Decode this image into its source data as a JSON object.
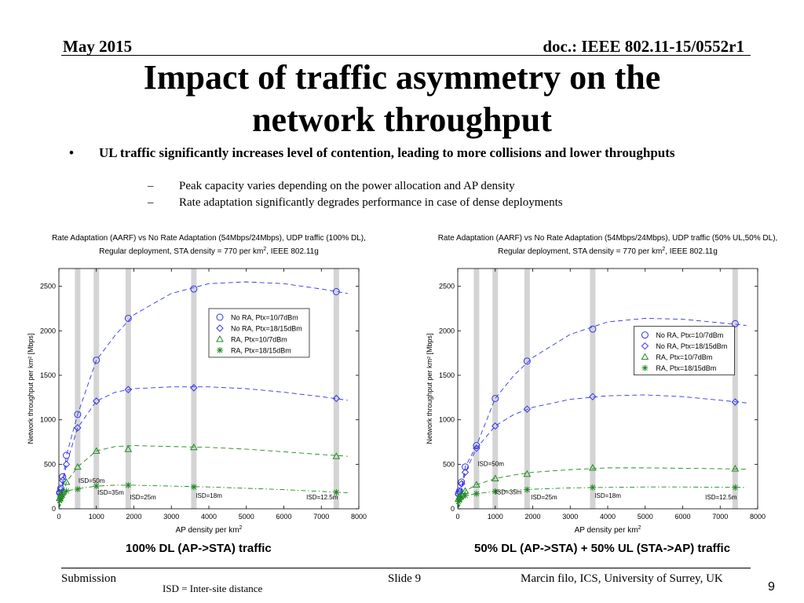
{
  "header": {
    "date": "May 2015",
    "doc": "doc.: IEEE 802.11-15/0552r1"
  },
  "title_line1": "Impact of traffic asymmetry on the",
  "title_line2": "network throughput",
  "bullets": [
    {
      "marker": "•",
      "text": "UL traffic significantly increases level of contention, leading to more collisions and lower throughputs",
      "sub": [
        {
          "marker": "–",
          "text": "Peak capacity varies depending on the power allocation and AP density"
        },
        {
          "marker": "–",
          "text": "Rate adaptation significantly degrades performance in case of dense deployments"
        }
      ]
    }
  ],
  "chart_data": [
    {
      "type": "scatter",
      "title": "Rate Adaptation (AARF) vs No Rate Adaptation (54Mbps/24Mbps), UDP traffic (100% DL),",
      "subtitle_a": "Regular deployment, STA density = 770 per km",
      "subtitle_sup": "2",
      "subtitle_b": ", IEEE 802.11g",
      "xlabel_a": "AP density per km",
      "xlabel_sup": "2",
      "ylabel": "Network throughput per km² [Mbps]",
      "xlim": [
        0,
        8000
      ],
      "ylim": [
        0,
        2700
      ],
      "xticks": [
        0,
        1000,
        2000,
        3000,
        4000,
        5000,
        6000,
        7000,
        8000
      ],
      "yticks": [
        0,
        500,
        1000,
        1500,
        2000,
        2500
      ],
      "legend_position": "center",
      "legend_x": 4000,
      "legend_top": 2250,
      "bands": [
        500,
        1000,
        1850,
        3600,
        7400
      ],
      "annotations": [
        {
          "text": "ISD=50m",
          "x": 520,
          "y": 290
        },
        {
          "text": "ISD=35m",
          "x": 1030,
          "y": 160
        },
        {
          "text": "ISD=25m",
          "x": 1890,
          "y": 105
        },
        {
          "text": "ISD=18m",
          "x": 3650,
          "y": 125
        },
        {
          "text": "ISD=12.5m",
          "x": 6600,
          "y": 105
        }
      ],
      "series": [
        {
          "name": "No RA, Ptx=10/7dBm",
          "color": "#3333ee",
          "marker": "circle",
          "x": [
            20,
            50,
            100,
            200,
            500,
            1000,
            1850,
            3600,
            7400
          ],
          "y": [
            180,
            230,
            360,
            600,
            1060,
            1670,
            2140,
            2470,
            2440
          ],
          "curve_x": [
            0,
            200,
            500,
            1000,
            1500,
            2000,
            3000,
            4000,
            5000,
            6000,
            7000,
            7700
          ],
          "curve_y": [
            0,
            600,
            1060,
            1670,
            1950,
            2180,
            2420,
            2530,
            2550,
            2530,
            2470,
            2420
          ]
        },
        {
          "name": "No RA, Ptx=18/15dBm",
          "color": "#3333ee",
          "marker": "diamond",
          "x": [
            20,
            50,
            100,
            200,
            500,
            1000,
            1850,
            3600,
            7400
          ],
          "y": [
            180,
            220,
            320,
            500,
            910,
            1210,
            1340,
            1360,
            1240
          ],
          "curve_x": [
            0,
            200,
            500,
            1000,
            1500,
            2000,
            3000,
            4000,
            5000,
            6000,
            7000,
            7700
          ],
          "curve_y": [
            0,
            500,
            910,
            1210,
            1310,
            1350,
            1370,
            1370,
            1350,
            1310,
            1260,
            1220
          ]
        },
        {
          "name": "RA, Ptx=10/7dBm",
          "color": "#1f8a1f",
          "marker": "triangle",
          "x": [
            20,
            50,
            100,
            200,
            500,
            1000,
            1850,
            3600,
            7400
          ],
          "y": [
            120,
            160,
            190,
            300,
            470,
            650,
            670,
            690,
            590
          ],
          "curve_x": [
            0,
            200,
            500,
            1000,
            1500,
            2000,
            3000,
            4000,
            5000,
            6000,
            7000,
            7700
          ],
          "curve_y": [
            0,
            300,
            470,
            650,
            700,
            710,
            700,
            690,
            670,
            640,
            610,
            590
          ]
        },
        {
          "name": "RA, Ptx=18/15dBm",
          "color": "#1f8a1f",
          "marker": "star",
          "x": [
            20,
            50,
            100,
            200,
            500,
            1000,
            1850,
            3600,
            7400
          ],
          "y": [
            90,
            110,
            150,
            200,
            220,
            255,
            265,
            245,
            185
          ],
          "curve_x": [
            0,
            200,
            500,
            1000,
            1500,
            2000,
            3000,
            4000,
            5000,
            6000,
            7000,
            7700
          ],
          "curve_y": [
            0,
            200,
            225,
            255,
            265,
            265,
            255,
            245,
            230,
            215,
            195,
            180
          ]
        }
      ]
    },
    {
      "type": "scatter",
      "title": "Rate Adaptation (AARF) vs No Rate Adaptation (54Mbps/24Mbps), UDP traffic (50% UL,50% DL),",
      "subtitle_a": "Regular deployment, STA density = 770 per km",
      "subtitle_sup": "2",
      "subtitle_b": ", IEEE 802.11g",
      "xlabel_a": "AP density per km",
      "xlabel_sup": "2",
      "ylabel": "Network throughput per km² [Mbps]",
      "xlim": [
        0,
        8000
      ],
      "ylim": [
        0,
        2700
      ],
      "xticks": [
        0,
        1000,
        2000,
        3000,
        4000,
        5000,
        6000,
        7000,
        8000
      ],
      "yticks": [
        0,
        500,
        1000,
        1500,
        2000,
        2500
      ],
      "legend_position": "center-right",
      "legend_x": 4700,
      "legend_top": 2050,
      "bands": [
        500,
        1000,
        1850,
        3600,
        7400
      ],
      "annotations": [
        {
          "text": "ISD=50m",
          "x": 530,
          "y": 480
        },
        {
          "text": "ISD=35m",
          "x": 1000,
          "y": 165
        },
        {
          "text": "ISD=25m",
          "x": 1950,
          "y": 105
        },
        {
          "text": "ISD=18m",
          "x": 3650,
          "y": 125
        },
        {
          "text": "ISD=12.5m",
          "x": 6600,
          "y": 105
        }
      ],
      "series": [
        {
          "name": "No RA, Ptx=10/7dBm",
          "color": "#3333ee",
          "marker": "circle",
          "x": [
            20,
            50,
            100,
            200,
            500,
            1000,
            1850,
            3600,
            7400
          ],
          "y": [
            170,
            200,
            300,
            470,
            710,
            1240,
            1660,
            2020,
            2080
          ],
          "curve_x": [
            0,
            200,
            500,
            1000,
            1500,
            2000,
            3000,
            4000,
            5000,
            6000,
            7000,
            7700
          ],
          "curve_y": [
            0,
            470,
            710,
            1240,
            1500,
            1700,
            1960,
            2100,
            2140,
            2130,
            2090,
            2060
          ]
        },
        {
          "name": "No RA, Ptx=18/15dBm",
          "color": "#3333ee",
          "marker": "diamond",
          "x": [
            20,
            50,
            100,
            200,
            500,
            1000,
            1850,
            3600,
            7400
          ],
          "y": [
            160,
            190,
            280,
            410,
            680,
            930,
            1120,
            1260,
            1200
          ],
          "curve_x": [
            0,
            200,
            500,
            1000,
            1500,
            2000,
            3000,
            4000,
            5000,
            6000,
            7000,
            7700
          ],
          "curve_y": [
            0,
            410,
            680,
            930,
            1060,
            1140,
            1230,
            1270,
            1280,
            1260,
            1220,
            1190
          ]
        },
        {
          "name": "RA, Ptx=10/7dBm",
          "color": "#1f8a1f",
          "marker": "triangle",
          "x": [
            20,
            50,
            100,
            200,
            500,
            1000,
            1850,
            3600,
            7400
          ],
          "y": [
            110,
            140,
            160,
            200,
            270,
            340,
            390,
            460,
            450
          ],
          "curve_x": [
            0,
            200,
            500,
            1000,
            1500,
            2000,
            3000,
            4000,
            5000,
            6000,
            7000,
            7700
          ],
          "curve_y": [
            0,
            200,
            270,
            340,
            380,
            410,
            440,
            460,
            460,
            455,
            450,
            445
          ]
        },
        {
          "name": "RA, Ptx=18/15dBm",
          "color": "#1f8a1f",
          "marker": "star",
          "x": [
            20,
            50,
            100,
            200,
            500,
            1000,
            1850,
            3600,
            7400
          ],
          "y": [
            80,
            100,
            130,
            150,
            170,
            195,
            215,
            240,
            240
          ],
          "curve_x": [
            0,
            200,
            500,
            1000,
            1500,
            2000,
            3000,
            4000,
            5000,
            6000,
            7000,
            7700
          ],
          "curve_y": [
            0,
            150,
            170,
            195,
            210,
            220,
            235,
            240,
            245,
            245,
            242,
            240
          ]
        }
      ]
    }
  ],
  "captions": [
    "100% DL (AP->STA) traffic",
    "50% DL (AP->STA) + 50% UL (STA->AP) traffic"
  ],
  "footer": {
    "left": "Submission",
    "center": "Slide 9",
    "right": "Marcin filo, ICS, University of Surrey, UK",
    "note": "ISD = Inter-site distance",
    "page": "9"
  }
}
